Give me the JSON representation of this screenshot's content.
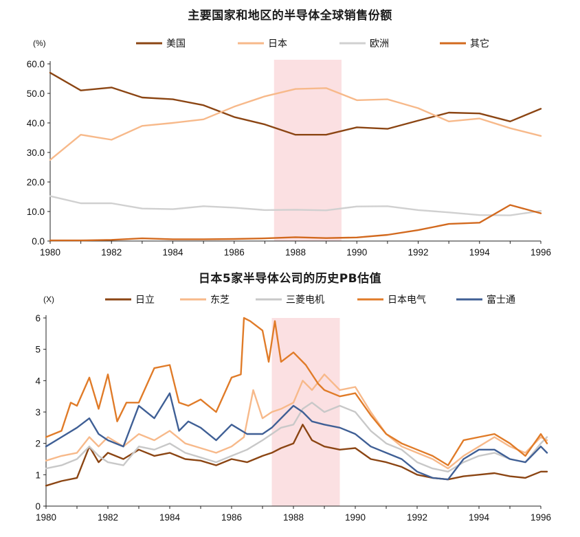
{
  "chart_data": [
    {
      "type": "line",
      "title": "主要国家和地区的半导体全球销售份额",
      "unit_label": "(%)",
      "x": [
        1980,
        1981,
        1982,
        1983,
        1984,
        1985,
        1986,
        1987,
        1988,
        1989,
        1990,
        1991,
        1992,
        1993,
        1994,
        1995,
        1996
      ],
      "x_ticks": [
        "1980",
        "1982",
        "1984",
        "1986",
        "1988",
        "1990",
        "1992",
        "1994",
        "1996"
      ],
      "y_ticks": [
        "0.0",
        "10.0",
        "20.0",
        "30.0",
        "40.0",
        "50.0",
        "60.0"
      ],
      "ylim": [
        0,
        60
      ],
      "shaded_range": [
        1987.3,
        1989.5
      ],
      "legend_position": "top",
      "series": [
        {
          "name": "美国",
          "color": "#8B4513",
          "values": [
            57.0,
            51.0,
            52.0,
            48.6,
            48.0,
            46.0,
            42.0,
            39.5,
            36.0,
            36.0,
            38.5,
            38.0,
            40.8,
            43.5,
            43.2,
            40.5,
            44.8
          ]
        },
        {
          "name": "日本",
          "color": "#F7B98A",
          "values": [
            27.5,
            36.0,
            34.3,
            39.0,
            40.0,
            41.2,
            45.5,
            49.0,
            51.5,
            51.8,
            47.7,
            48.0,
            45.0,
            40.5,
            41.5,
            38.2,
            35.6
          ]
        },
        {
          "name": "欧洲",
          "color": "#D0D0D0",
          "values": [
            15.2,
            12.8,
            12.8,
            11.0,
            10.8,
            11.8,
            11.3,
            10.5,
            10.6,
            10.4,
            11.7,
            11.8,
            10.5,
            9.7,
            8.8,
            8.7,
            10.2
          ]
        },
        {
          "name": "其它",
          "color": "#D2691E",
          "values": [
            0.2,
            0.2,
            0.4,
            0.9,
            0.6,
            0.6,
            0.7,
            0.9,
            1.3,
            1.0,
            1.2,
            2.1,
            3.7,
            5.8,
            6.2,
            12.2,
            9.4
          ]
        }
      ]
    },
    {
      "type": "line",
      "title": "日本5家半导体公司的历史PB估值",
      "unit_label": "(X)",
      "x_ticks": [
        "1980",
        "1982",
        "1984",
        "1986",
        "1988",
        "1990",
        "1992",
        "1994",
        "1996"
      ],
      "y_ticks": [
        "0",
        "1",
        "2",
        "3",
        "4",
        "5",
        "6"
      ],
      "ylim": [
        0,
        6
      ],
      "shaded_range": [
        1987.3,
        1989.5
      ],
      "legend_position": "top",
      "series": [
        {
          "name": "日立",
          "color": "#8B4513",
          "x": [
            1980,
            1980.5,
            1981,
            1981.4,
            1981.7,
            1982,
            1982.5,
            1983,
            1983.5,
            1984,
            1984.5,
            1985,
            1985.5,
            1986,
            1986.5,
            1987,
            1987.3,
            1987.6,
            1988,
            1988.3,
            1988.6,
            1989,
            1989.5,
            1990,
            1990.5,
            1991,
            1991.5,
            1992,
            1992.5,
            1993,
            1993.5,
            1994,
            1994.5,
            1995,
            1995.5,
            1996,
            1996.2
          ],
          "values": [
            0.65,
            0.8,
            0.9,
            1.9,
            1.4,
            1.7,
            1.5,
            1.8,
            1.6,
            1.7,
            1.5,
            1.45,
            1.3,
            1.5,
            1.4,
            1.6,
            1.7,
            1.85,
            2.0,
            2.6,
            2.1,
            1.9,
            1.8,
            1.85,
            1.5,
            1.4,
            1.25,
            1.0,
            0.9,
            0.85,
            0.95,
            1.0,
            1.05,
            0.95,
            0.9,
            1.1,
            1.1
          ]
        },
        {
          "name": "东芝",
          "color": "#F7B98A",
          "x": [
            1980,
            1980.5,
            1981,
            1981.4,
            1981.7,
            1982,
            1982.5,
            1983,
            1983.5,
            1984,
            1984.5,
            1985,
            1985.5,
            1986,
            1986.4,
            1986.7,
            1987,
            1987.3,
            1987.6,
            1988,
            1988.3,
            1988.6,
            1989,
            1989.5,
            1990,
            1990.5,
            1991,
            1991.5,
            1992,
            1992.5,
            1993,
            1993.5,
            1994,
            1994.5,
            1995,
            1995.5,
            1996,
            1996.2
          ],
          "values": [
            1.45,
            1.6,
            1.7,
            2.2,
            1.9,
            2.2,
            1.9,
            2.3,
            2.1,
            2.4,
            2.0,
            1.85,
            1.7,
            1.9,
            2.2,
            3.7,
            2.8,
            3.0,
            3.1,
            3.3,
            4.0,
            3.7,
            4.2,
            3.7,
            3.8,
            3.0,
            2.3,
            1.9,
            1.7,
            1.5,
            1.2,
            1.6,
            1.9,
            2.2,
            1.9,
            1.7,
            2.2,
            2.1
          ]
        },
        {
          "name": "三菱电机",
          "color": "#C8C8C8",
          "x": [
            1980,
            1980.5,
            1981,
            1981.4,
            1981.7,
            1982,
            1982.5,
            1983,
            1983.5,
            1984,
            1984.5,
            1985,
            1985.5,
            1986,
            1986.5,
            1987,
            1987.3,
            1987.6,
            1988,
            1988.3,
            1988.6,
            1989,
            1989.5,
            1990,
            1990.5,
            1991,
            1991.5,
            1992,
            1992.5,
            1993,
            1993.5,
            1994,
            1994.5,
            1995,
            1995.5,
            1996,
            1996.2
          ],
          "values": [
            1.2,
            1.3,
            1.5,
            1.9,
            1.6,
            1.4,
            1.3,
            1.9,
            1.8,
            2.0,
            1.7,
            1.55,
            1.4,
            1.6,
            1.8,
            2.1,
            2.3,
            2.5,
            2.6,
            3.1,
            3.3,
            3.0,
            3.2,
            3.0,
            2.4,
            2.0,
            1.8,
            1.4,
            1.2,
            1.1,
            1.4,
            1.6,
            1.7,
            1.5,
            1.4,
            2.0,
            2.2
          ]
        },
        {
          "name": "日本电气",
          "color": "#E07B28",
          "x": [
            1980,
            1980.5,
            1980.8,
            1981,
            1981.4,
            1981.7,
            1982,
            1982.3,
            1982.6,
            1983,
            1983.5,
            1984,
            1984.3,
            1984.6,
            1985,
            1985.5,
            1986,
            1986.3,
            1986.4,
            1986.6,
            1987,
            1987.2,
            1987.4,
            1987.6,
            1988,
            1988.4,
            1988.8,
            1989,
            1989.5,
            1990,
            1990.5,
            1991,
            1991.5,
            1992,
            1992.5,
            1993,
            1993.5,
            1994,
            1994.5,
            1995,
            1995.5,
            1996,
            1996.2
          ],
          "values": [
            2.2,
            2.4,
            3.3,
            3.2,
            4.1,
            3.1,
            4.2,
            2.7,
            3.3,
            3.3,
            4.4,
            4.5,
            3.3,
            3.2,
            3.4,
            3.0,
            4.1,
            4.2,
            6.0,
            5.9,
            5.6,
            4.6,
            5.9,
            4.6,
            4.9,
            4.5,
            3.9,
            3.7,
            3.5,
            3.6,
            2.9,
            2.3,
            2.0,
            1.8,
            1.6,
            1.3,
            2.1,
            2.2,
            2.3,
            2.0,
            1.6,
            2.3,
            2.0
          ]
        },
        {
          "name": "富士通",
          "color": "#3F5F95",
          "x": [
            1980,
            1980.5,
            1981,
            1981.4,
            1981.7,
            1982,
            1982.5,
            1983,
            1983.5,
            1984,
            1984.3,
            1984.6,
            1985,
            1985.5,
            1986,
            1986.5,
            1987,
            1987.3,
            1987.6,
            1988,
            1988.3,
            1988.6,
            1989,
            1989.5,
            1990,
            1990.5,
            1991,
            1991.5,
            1992,
            1992.5,
            1993,
            1993.5,
            1994,
            1994.5,
            1995,
            1995.5,
            1996,
            1996.2
          ],
          "values": [
            1.9,
            2.2,
            2.5,
            2.8,
            2.3,
            2.1,
            1.9,
            3.2,
            2.8,
            3.6,
            2.4,
            2.7,
            2.5,
            2.1,
            2.6,
            2.3,
            2.3,
            2.5,
            2.8,
            3.2,
            3.0,
            2.7,
            2.6,
            2.5,
            2.3,
            1.9,
            1.7,
            1.5,
            1.1,
            0.9,
            0.85,
            1.5,
            1.8,
            1.8,
            1.5,
            1.4,
            1.9,
            1.7
          ]
        }
      ]
    }
  ]
}
